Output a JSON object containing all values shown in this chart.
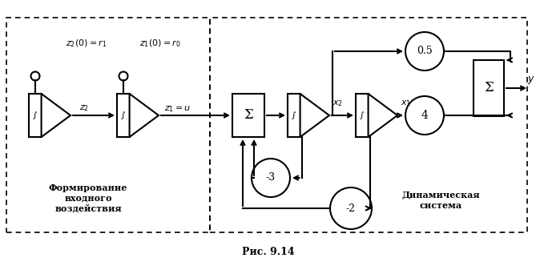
{
  "title": "Рис. 9.14",
  "left_label": "Формирование\nвходного\nвоздействия",
  "right_label": "Динамическая\nсистема",
  "ic1": "$z_2(0) = r_1$",
  "ic2": "$z_1(0) = r_0$",
  "z2_lbl": "$z_2$",
  "z1u_lbl": "$z_1 = u$",
  "x2_lbl": "$x_2$",
  "x1_lbl": "$x_1$",
  "y_lbl": "$y$",
  "bg": "#ffffff",
  "lw": 1.5,
  "fig_w": 6.69,
  "fig_h": 3.32
}
